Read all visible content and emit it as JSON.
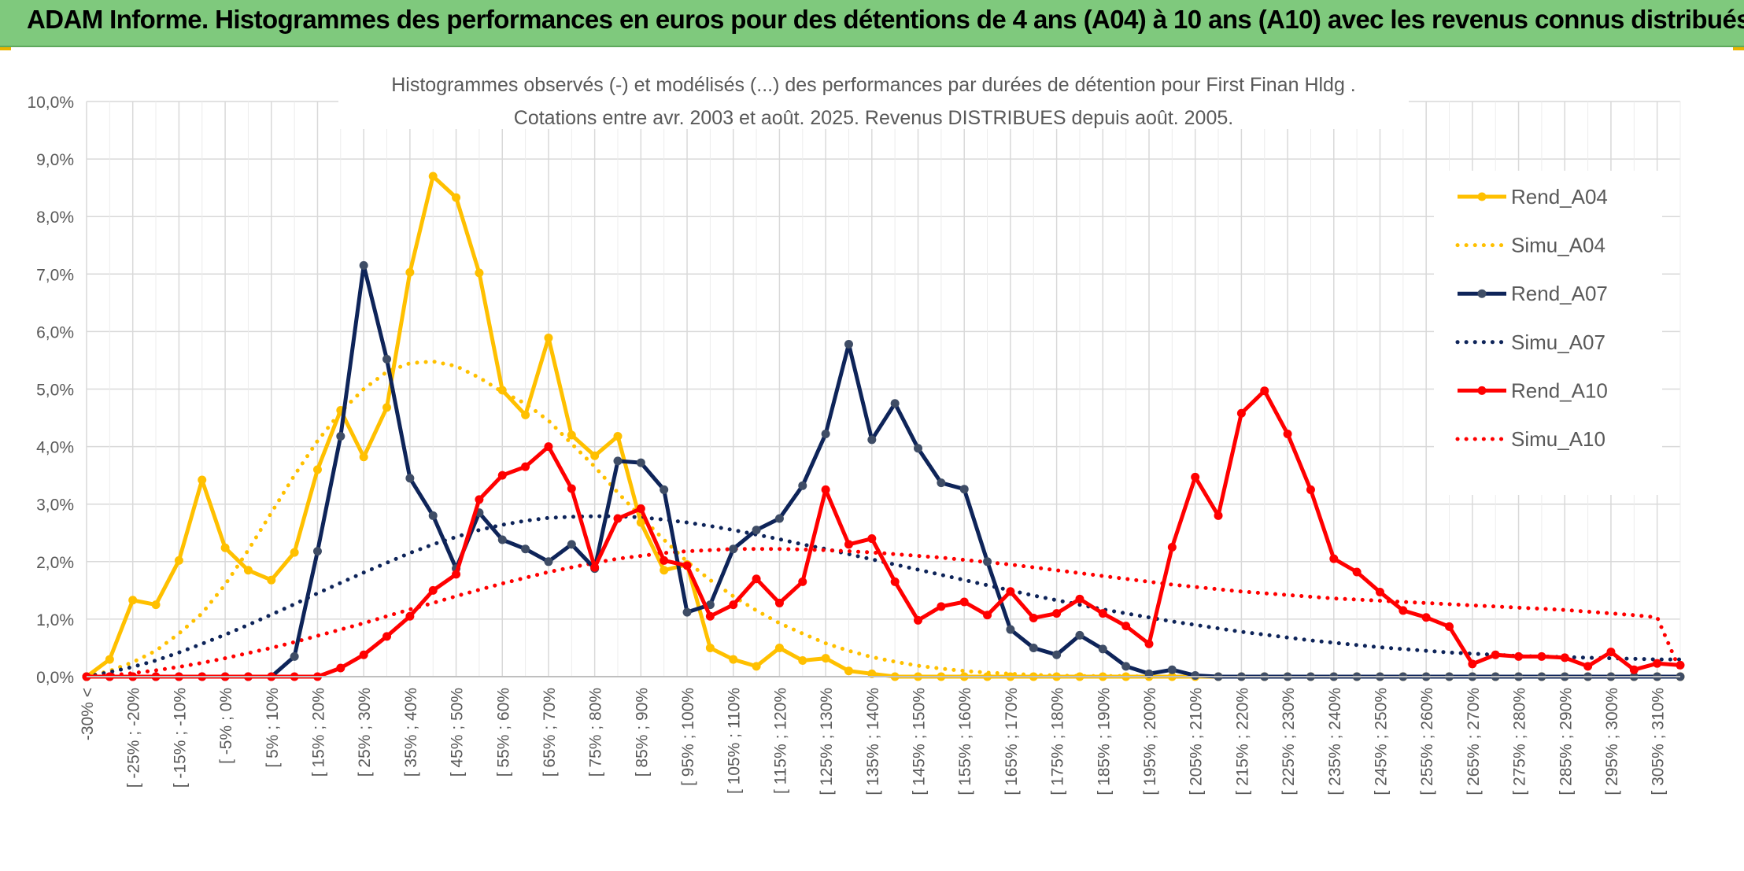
{
  "banner": {
    "title": "ADAM Informe. Histogrammes des performances en euros pour des détentions de 4 ans (A04) à 10 ans (A10) avec les revenus connus distribués"
  },
  "colors": {
    "banner_bg": "#7fc97d",
    "a04": "#ffc000",
    "a07": "#0e2459",
    "a10": "#ff0000",
    "grid": "#d9d9d9",
    "axis_text": "#595959"
  },
  "chart_data": {
    "type": "line",
    "title": "Histogrammes observés (-) et modélisés (...) des performances par durées de détention pour First Finan Hldg .",
    "subtitle": "Cotations entre avr. 2003 et août. 2025. Revenus DISTRIBUES depuis août. 2005.",
    "ylim": [
      0,
      10
    ],
    "y_ticks": [
      "0,0%",
      "1,0%",
      "2,0%",
      "3,0%",
      "4,0%",
      "5,0%",
      "6,0%",
      "7,0%",
      "8,0%",
      "9,0%",
      "10,0%"
    ],
    "x_labels": [
      "-30% <",
      "[ -25% ; -20%",
      "[ -15% ; -10%",
      "[ -5% ; 0%",
      "[ 5% ; 10%",
      "[ 15% ; 20%",
      "[ 25% ; 30%",
      "[ 35% ; 40%",
      "[ 45% ; 50%",
      "[ 55% ; 60%",
      "[ 65% ; 70%",
      "[ 75% ; 80%",
      "[ 85% ; 90%",
      "[ 95% ; 100%",
      "[ 105% ; 110%",
      "[ 115% ; 120%",
      "[ 125% ; 130%",
      "[ 135% ; 140%",
      "[ 145% ; 150%",
      "[ 155% ; 160%",
      "[ 165% ; 170%",
      "[ 175% ; 180%",
      "[ 185% ; 190%",
      "[ 195% ; 200%",
      "[ 205% ; 210%",
      "[ 215% ; 220%",
      "[ 225% ; 230%",
      "[ 235% ; 240%",
      "[ 245% ; 250%",
      "[ 255% ; 260%",
      "[ 265% ; 270%",
      "[ 275% ; 280%",
      "[ 285% ; 290%",
      "[ 295% ; 300%",
      "[ 305% ; 310%"
    ],
    "grid": true,
    "legend_position": "right",
    "series": [
      {
        "name": "Rend_A04",
        "style": "solid",
        "color": "#ffc000",
        "markers": true,
        "values": [
          0.0,
          0.3,
          1.33,
          1.25,
          2.02,
          3.42,
          2.24,
          1.85,
          1.68,
          2.16,
          3.6,
          4.63,
          3.82,
          4.68,
          7.03,
          8.7,
          8.33,
          7.02,
          4.98,
          4.55,
          5.89,
          4.2,
          3.84,
          4.18,
          2.68,
          1.85,
          1.95,
          0.5,
          0.3,
          0.18,
          0.5,
          0.28,
          0.32,
          0.1,
          0.05,
          0.0,
          0.0,
          0.0,
          0.0,
          0.0,
          0.0,
          0.0,
          0.0,
          0.0,
          0.0,
          0.0,
          0.0,
          0.0
        ]
      },
      {
        "name": "Simu_A04",
        "style": "dotted",
        "color": "#ffc000",
        "markers": false,
        "values": [
          0.0,
          0.1,
          0.25,
          0.45,
          0.75,
          1.1,
          1.6,
          2.2,
          2.85,
          3.5,
          4.1,
          4.6,
          5.0,
          5.3,
          5.45,
          5.48,
          5.4,
          5.2,
          4.95,
          4.75,
          4.45,
          4.05,
          3.65,
          3.2,
          2.78,
          2.38,
          2.0,
          1.68,
          1.4,
          1.15,
          0.93,
          0.75,
          0.58,
          0.45,
          0.34,
          0.26,
          0.19,
          0.14,
          0.1,
          0.07,
          0.05,
          0.03,
          0.02,
          0.01,
          0.01,
          0.01,
          0.0,
          0.0
        ]
      },
      {
        "name": "Rend_A07",
        "style": "solid",
        "color": "#0e2459",
        "markers": true,
        "values": [
          0.0,
          0.0,
          0.0,
          0.0,
          0.0,
          0.0,
          0.0,
          0.0,
          0.0,
          0.35,
          2.18,
          4.18,
          7.15,
          5.52,
          3.45,
          2.8,
          1.88,
          2.85,
          2.38,
          2.22,
          2.0,
          2.3,
          1.88,
          3.75,
          3.72,
          3.25,
          1.12,
          1.25,
          2.22,
          2.55,
          2.75,
          3.32,
          4.22,
          5.78,
          4.12,
          4.75,
          3.97,
          3.37,
          3.26,
          2.0,
          0.82,
          0.5,
          0.38,
          0.72,
          0.48,
          0.18,
          0.05,
          0.12
        ]
      },
      {
        "name": "Simu_A07",
        "style": "dotted",
        "color": "#0e2459",
        "markers": false,
        "values": [
          0.0,
          0.08,
          0.17,
          0.28,
          0.42,
          0.57,
          0.73,
          0.9,
          1.08,
          1.26,
          1.45,
          1.63,
          1.81,
          1.98,
          2.15,
          2.3,
          2.43,
          2.55,
          2.64,
          2.71,
          2.76,
          2.78,
          2.79,
          2.79,
          2.77,
          2.73,
          2.68,
          2.62,
          2.55,
          2.47,
          2.39,
          2.3,
          2.22,
          2.13,
          2.04,
          1.95,
          1.86,
          1.77,
          1.68,
          1.59,
          1.5,
          1.41,
          1.33,
          1.25,
          1.17,
          1.1,
          1.03,
          0.96
        ]
      },
      {
        "name": "Rend_A10",
        "style": "solid",
        "color": "#ff0000",
        "markers": true,
        "values": [
          0.0,
          0.0,
          0.0,
          0.0,
          0.0,
          0.0,
          0.0,
          0.0,
          0.0,
          0.0,
          0.0,
          0.15,
          0.38,
          0.7,
          1.05,
          1.5,
          1.78,
          3.08,
          3.5,
          3.65,
          4.0,
          3.27,
          1.9,
          2.75,
          2.92,
          2.02,
          1.93,
          1.05,
          1.25,
          1.7,
          1.28,
          1.65,
          3.25,
          2.3,
          2.4,
          1.65,
          0.98,
          1.22,
          1.3,
          1.07,
          1.48,
          1.02,
          1.1,
          1.35,
          1.1,
          0.88,
          0.57,
          2.25
        ]
      },
      {
        "name": "Simu_A10",
        "style": "dotted",
        "color": "#ff0000",
        "markers": false,
        "values": [
          0.0,
          0.02,
          0.06,
          0.11,
          0.17,
          0.24,
          0.32,
          0.41,
          0.5,
          0.6,
          0.71,
          0.82,
          0.93,
          1.05,
          1.17,
          1.28,
          1.4,
          1.51,
          1.62,
          1.72,
          1.82,
          1.9,
          1.98,
          2.05,
          2.1,
          2.15,
          2.18,
          2.2,
          2.22,
          2.22,
          2.22,
          2.21,
          2.2,
          2.18,
          2.16,
          2.13,
          2.1,
          2.07,
          2.03,
          1.99,
          1.95,
          1.9,
          1.85,
          1.8,
          1.75,
          1.7,
          1.65,
          1.6
        ]
      }
    ],
    "tail": {
      "Rend_A04": [
        0.0,
        0.0,
        0.0,
        0.0,
        0.0,
        0.0,
        0.0,
        0.0,
        0.0,
        0.0,
        0.0,
        0.0,
        0.0,
        0.0,
        0.0,
        0.0,
        0.0,
        0.0,
        0.0,
        0.0,
        0.0,
        0.0
      ],
      "Simu_A04": [
        0.0,
        0.0,
        0.0,
        0.0,
        0.0,
        0.0,
        0.0,
        0.0,
        0.0,
        0.0,
        0.0,
        0.0,
        0.0,
        0.0,
        0.0,
        0.0,
        0.0,
        0.0,
        0.0,
        0.0,
        0.0,
        0.0
      ],
      "Rend_A07": [
        0.02,
        0.0,
        0.0,
        0.0,
        0.0,
        0.0,
        0.0,
        0.0,
        0.0,
        0.0,
        0.0,
        0.0,
        0.0,
        0.0,
        0.0,
        0.0,
        0.0,
        0.0,
        0.0,
        0.0,
        0.0,
        0.0
      ],
      "Simu_A07": [
        0.9,
        0.84,
        0.78,
        0.73,
        0.68,
        0.63,
        0.59,
        0.55,
        0.51,
        0.48,
        0.45,
        0.42,
        0.4,
        0.38,
        0.36,
        0.35,
        0.34,
        0.33,
        0.32,
        0.31,
        0.3,
        0.3
      ],
      "Rend_A10": [
        3.47,
        2.8,
        4.58,
        4.97,
        4.22,
        3.25,
        2.05,
        1.82,
        1.47,
        1.15,
        1.03,
        0.87,
        0.22,
        0.38,
        0.35,
        0.35,
        0.33,
        0.18,
        0.43,
        0.12,
        0.23,
        0.2
      ],
      "Simu_A10": [
        1.56,
        1.52,
        1.48,
        1.45,
        1.42,
        1.39,
        1.36,
        1.34,
        1.32,
        1.3,
        1.28,
        1.26,
        1.24,
        1.22,
        1.2,
        1.18,
        1.16,
        1.13,
        1.1,
        1.07,
        1.03,
        0.1
      ]
    }
  }
}
